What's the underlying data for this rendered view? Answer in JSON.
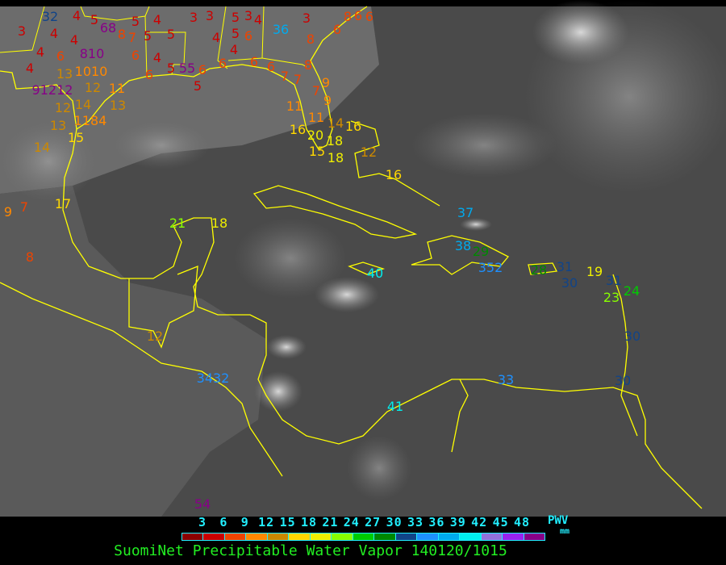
{
  "title": "SuomiNet Precipitable Water Vapor 140120/1015",
  "legend": {
    "unit_label": "PWV",
    "unit": "mm",
    "ticks": [
      "3",
      "6",
      "9",
      "12",
      "15",
      "18",
      "21",
      "24",
      "27",
      "30",
      "33",
      "36",
      "39",
      "42",
      "45",
      "48"
    ],
    "colors": [
      "#8b0000",
      "#cc0000",
      "#ee4400",
      "#ff8800",
      "#cc8800",
      "#ffd700",
      "#eeee00",
      "#88ff00",
      "#00cc00",
      "#008800",
      "#114488",
      "#1e90ff",
      "#00aaee",
      "#00eeee",
      "#9370db",
      "#9922ee",
      "#880088"
    ]
  },
  "colors": {
    "coastline": "#ffff00",
    "background": "#000000"
  },
  "stations": [
    "32",
    "4",
    "5",
    "68",
    "8",
    "7",
    "5",
    "5",
    "4",
    "5",
    "3",
    "4",
    "4",
    "4",
    "4",
    "6",
    "810",
    "1010",
    "12",
    "91212",
    "13",
    "12",
    "14",
    "13",
    "1184",
    "15",
    "14",
    "11",
    "13",
    "6",
    "6",
    "5",
    "55",
    "6",
    "5",
    "4",
    "3",
    "3",
    "5",
    "3",
    "5",
    "4",
    "4",
    "4",
    "6",
    "6",
    "6",
    "6",
    "36",
    "3",
    "8",
    "6",
    "8",
    "6",
    "6",
    "8",
    "7",
    "7",
    "7",
    "9",
    "9",
    "11",
    "11",
    "14",
    "16",
    "20",
    "18",
    "15",
    "18",
    "16",
    "12",
    "16",
    "9",
    "7",
    "17",
    "8",
    "21",
    "18",
    "12",
    "3432",
    "40",
    "37",
    "38",
    "29",
    "352",
    "28",
    "31",
    "30",
    "19",
    "31",
    "23",
    "24",
    "30",
    "30",
    "33",
    "41",
    "54"
  ]
}
